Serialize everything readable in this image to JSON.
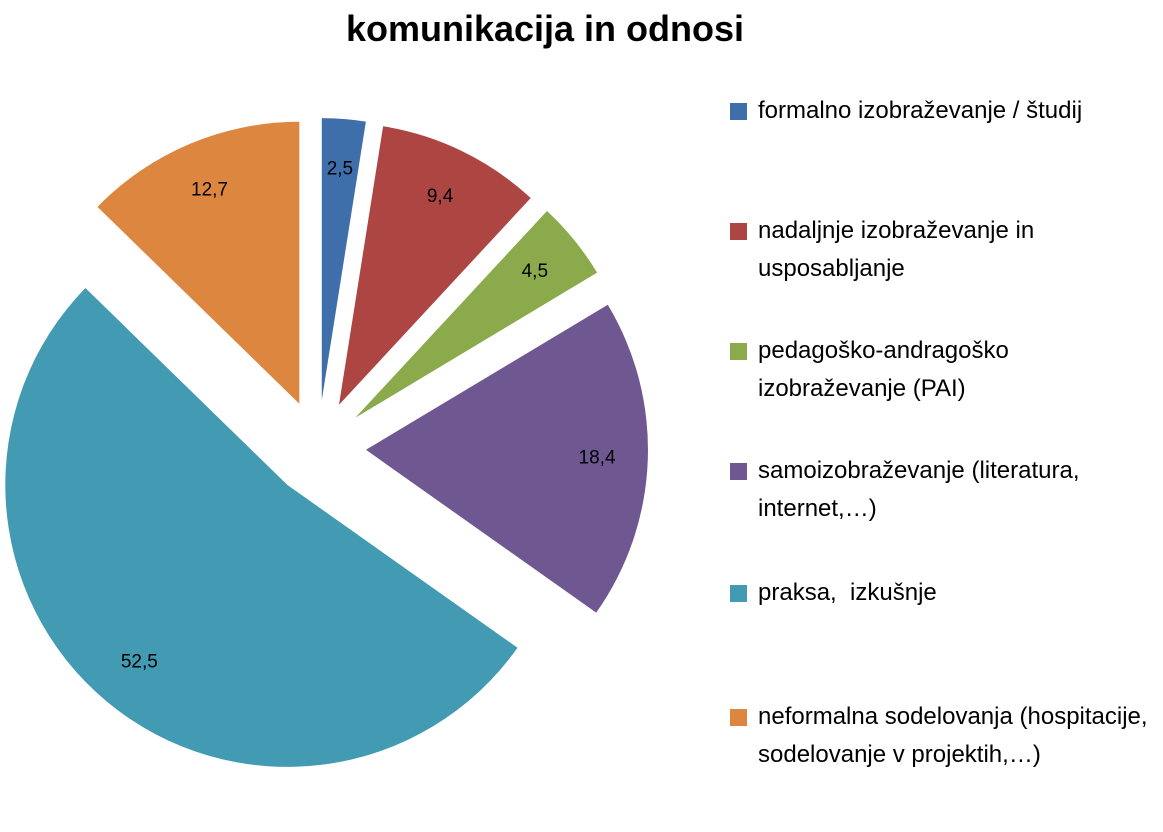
{
  "chart_data": {
    "type": "pie",
    "title": "komunikacija in odnosi",
    "categories": [
      "formalno izobraževanje / študij",
      "nadaljnje izobraževanje in usposabljanje",
      "pedagoško-andragoško izobraževanje (PAI)",
      "samoizobraževanje (literatura, internet,…)",
      "praksa,  izkušnje",
      "neformalna sodelovanja (hospitacije, sodelovanje v projektih,…)"
    ],
    "values": [
      2.5,
      9.4,
      4.5,
      18.4,
      52.5,
      12.7
    ],
    "value_labels": [
      "2,5",
      "9,4",
      "4,5",
      "18,4",
      "52,5",
      "12,7"
    ],
    "colors": [
      "#3f6fab",
      "#ad4543",
      "#8aaa4c",
      "#6f5792",
      "#439bb3",
      "#dd8640"
    ],
    "legend": "right",
    "exploded": true
  }
}
